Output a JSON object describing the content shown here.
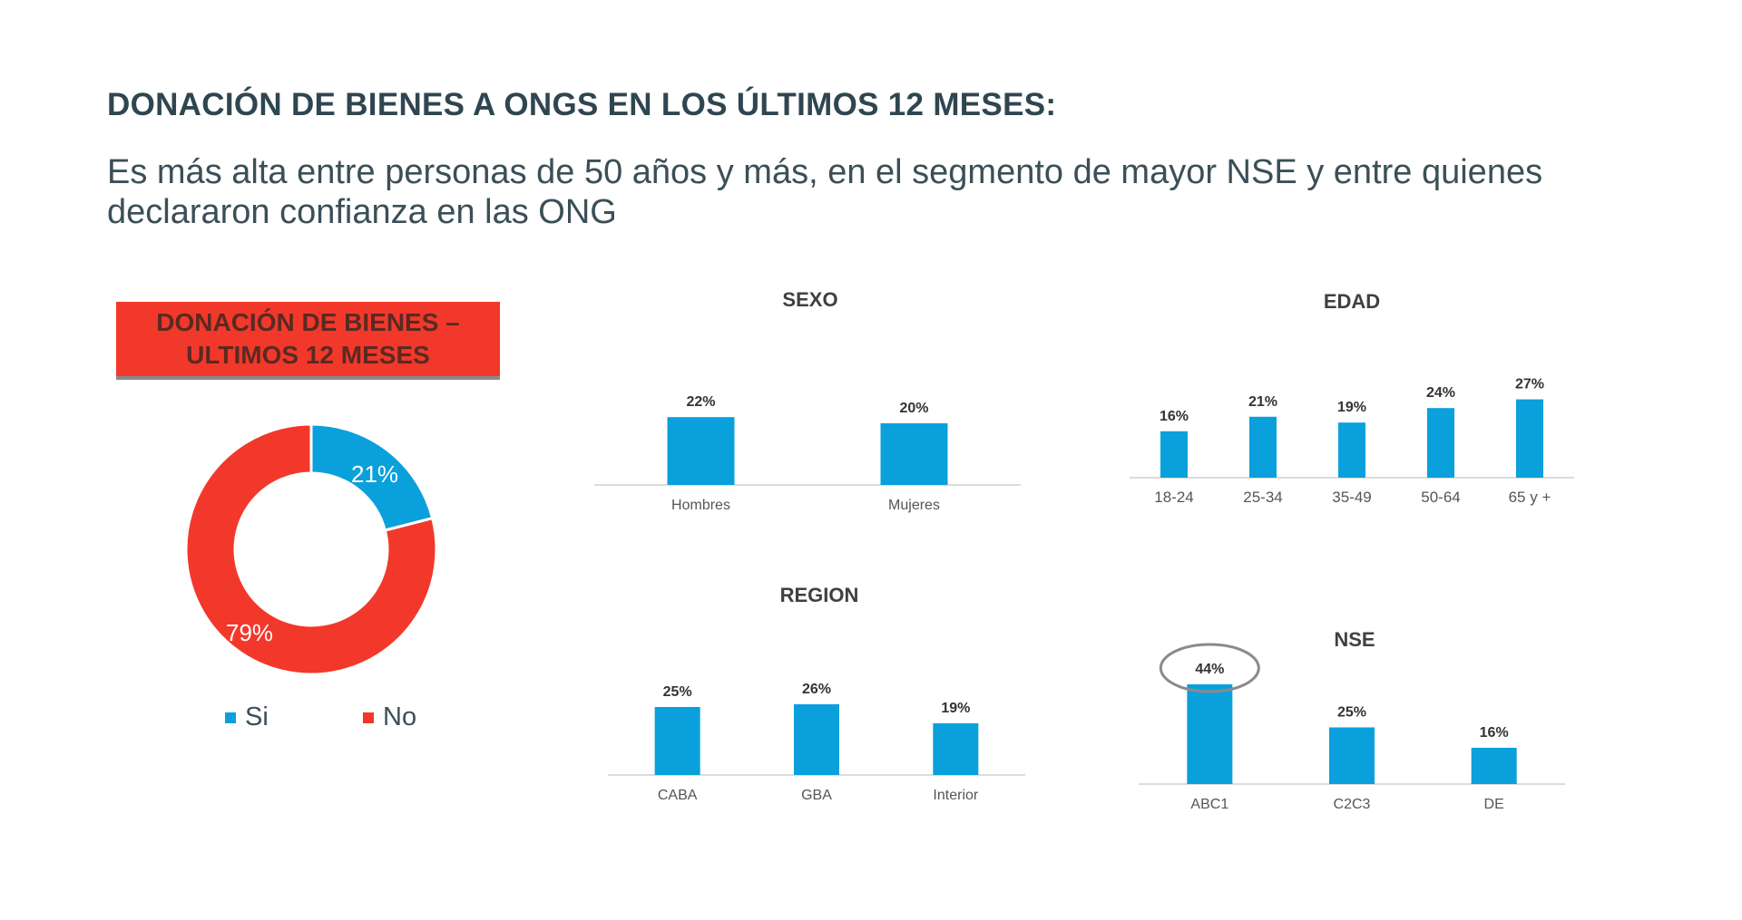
{
  "header": {
    "title": "DONACIÓN DE BIENES A ONGS EN LOS ÚLTIMOS 12 MESES:",
    "subtitle": "Es más alta entre personas de 50 años y más, en el segmento de mayor NSE y entre quienes declararon confianza en las ONG"
  },
  "donut_banner": {
    "line1": "DONACIÓN DE BIENES –",
    "line2": "ULTIMOS 12 MESES"
  },
  "colors": {
    "blue": "#0aa0dc",
    "red": "#f2382a",
    "axis": "#d0d0d0"
  },
  "chart_data": [
    {
      "type": "pie",
      "title": "DONACIÓN DE BIENES – ULTIMOS 12 MESES",
      "categories": [
        "Si",
        "No"
      ],
      "values": [
        21,
        79
      ],
      "labels": [
        "21%",
        "79%"
      ],
      "donut": true,
      "legend": "bottom"
    },
    {
      "type": "bar",
      "title": "SEXO",
      "categories": [
        "Hombres",
        "Mujeres"
      ],
      "values": [
        22,
        20
      ],
      "labels": [
        "22%",
        "20%"
      ]
    },
    {
      "type": "bar",
      "title": "EDAD",
      "categories": [
        "18-24",
        "25-34",
        "35-49",
        "50-64",
        "65 y +"
      ],
      "values": [
        16,
        21,
        19,
        24,
        27
      ],
      "labels": [
        "16%",
        "21%",
        "19%",
        "24%",
        "27%"
      ]
    },
    {
      "type": "bar",
      "title": "REGION",
      "categories": [
        "CABA",
        "GBA",
        "Interior"
      ],
      "values": [
        25,
        26,
        19
      ],
      "labels": [
        "25%",
        "26%",
        "19%"
      ]
    },
    {
      "type": "bar",
      "title": "NSE",
      "categories": [
        "ABC1",
        "C2C3",
        "DE"
      ],
      "values": [
        44,
        25,
        16
      ],
      "labels": [
        "44%",
        "25%",
        "16%"
      ],
      "highlight": "ABC1"
    }
  ]
}
